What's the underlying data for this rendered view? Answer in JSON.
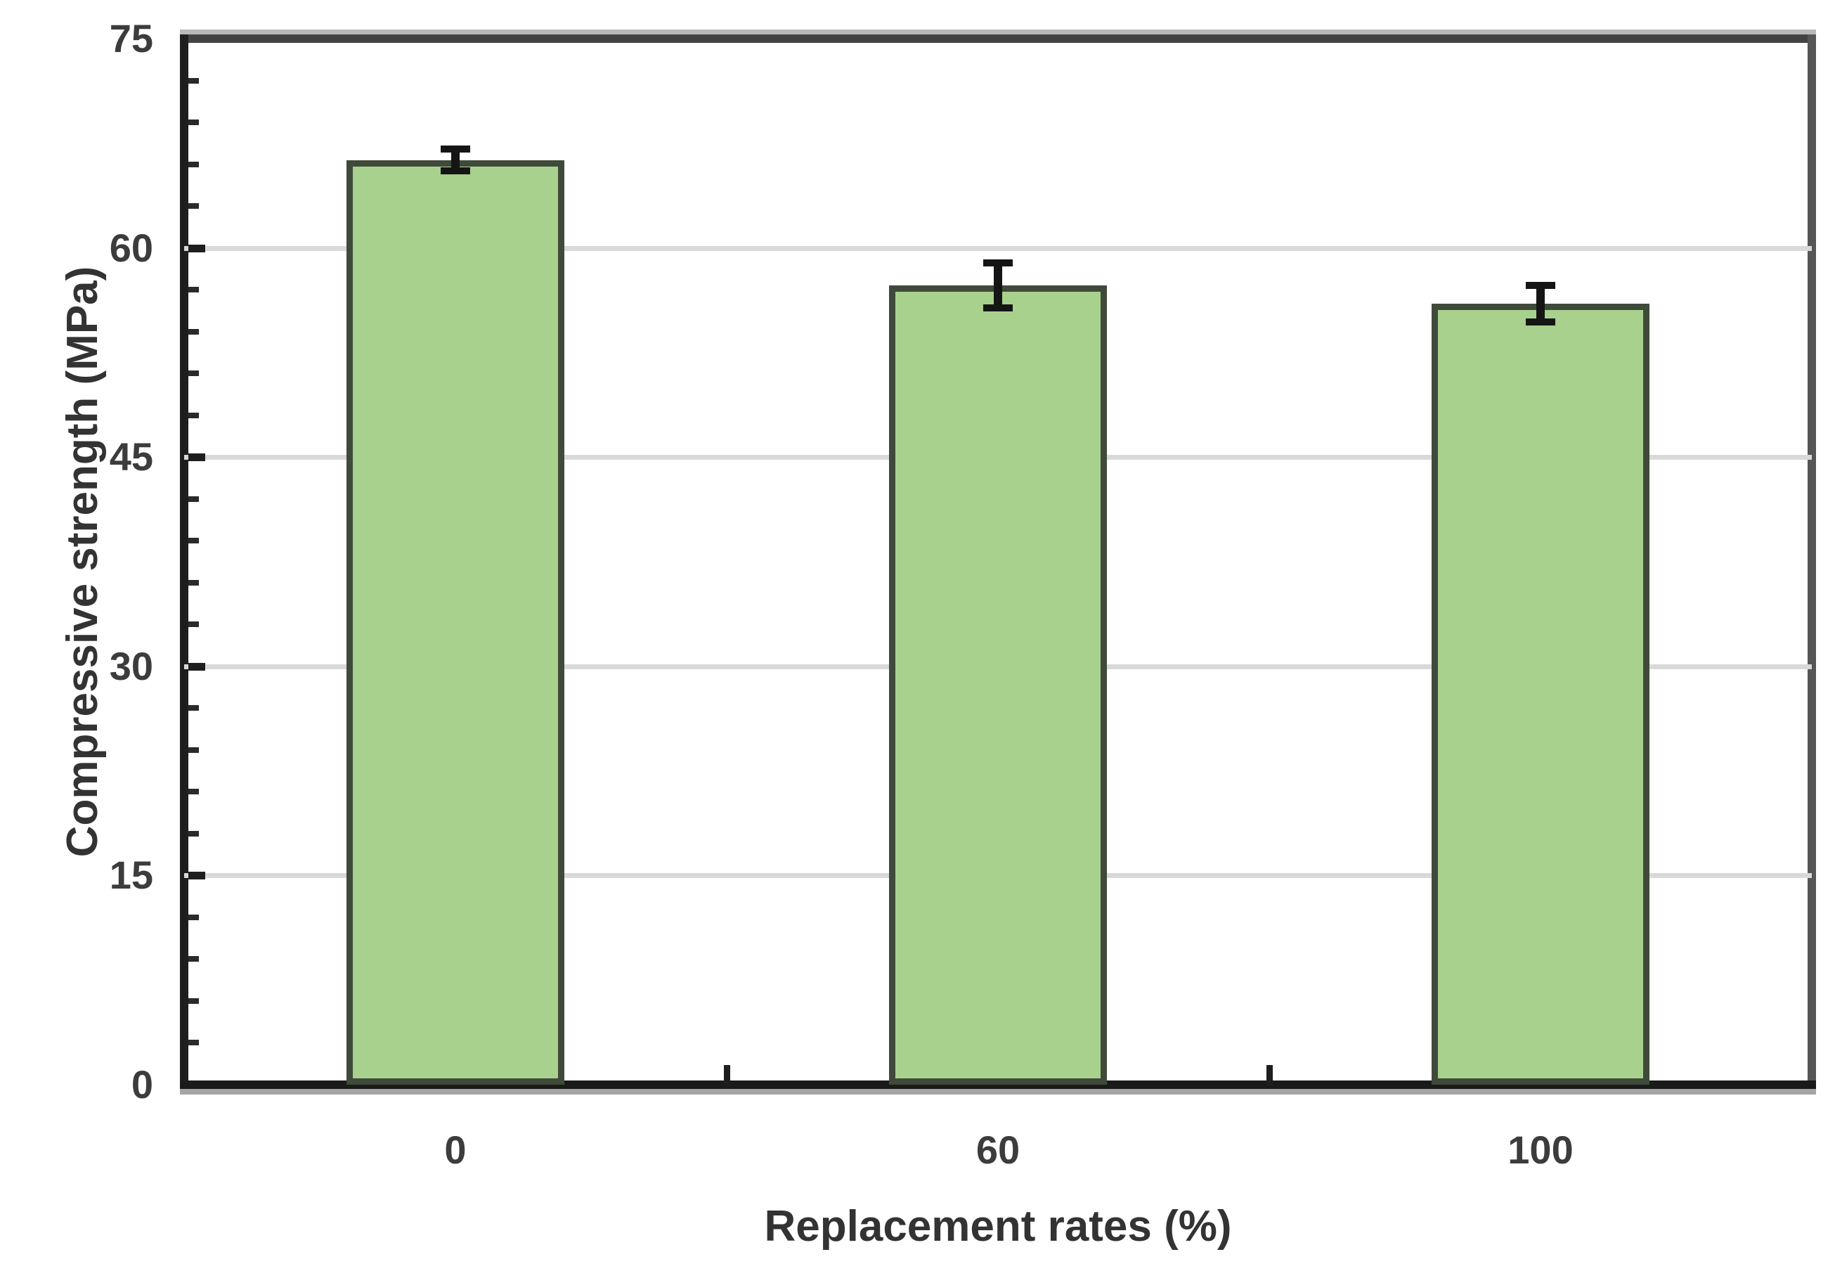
{
  "figure": {
    "description": "Bar chart of concrete compressive strength versus replacement rate, with error bars",
    "background_color": "#ffffff"
  },
  "chart_data": {
    "type": "bar",
    "title": "",
    "categories": [
      "0",
      "60",
      "100"
    ],
    "values": [
      66.3,
      57.3,
      56.0
    ],
    "errors": [
      0.8,
      1.6,
      1.3
    ],
    "xlabel": "Replacement rates (%)",
    "ylabel": "Compressive strength (MPa)",
    "ylim": [
      0,
      75
    ],
    "yticks": [
      0,
      15,
      30,
      45,
      60,
      75
    ],
    "ytick_labels": [
      "0",
      "15",
      "30",
      "45",
      "60",
      "75"
    ],
    "minor_tick_step": 3,
    "grid": "horizontal-major-only",
    "legend": "none",
    "bar_fill_color": "#a9d18e",
    "bar_border_color": "#3f4a3a",
    "error_bar_color": "#151515",
    "gridline_color": "#d9d9d9",
    "axis_color": "#1e1e1e",
    "frame_color": "#565656",
    "text_color": "#3c3c3c"
  }
}
